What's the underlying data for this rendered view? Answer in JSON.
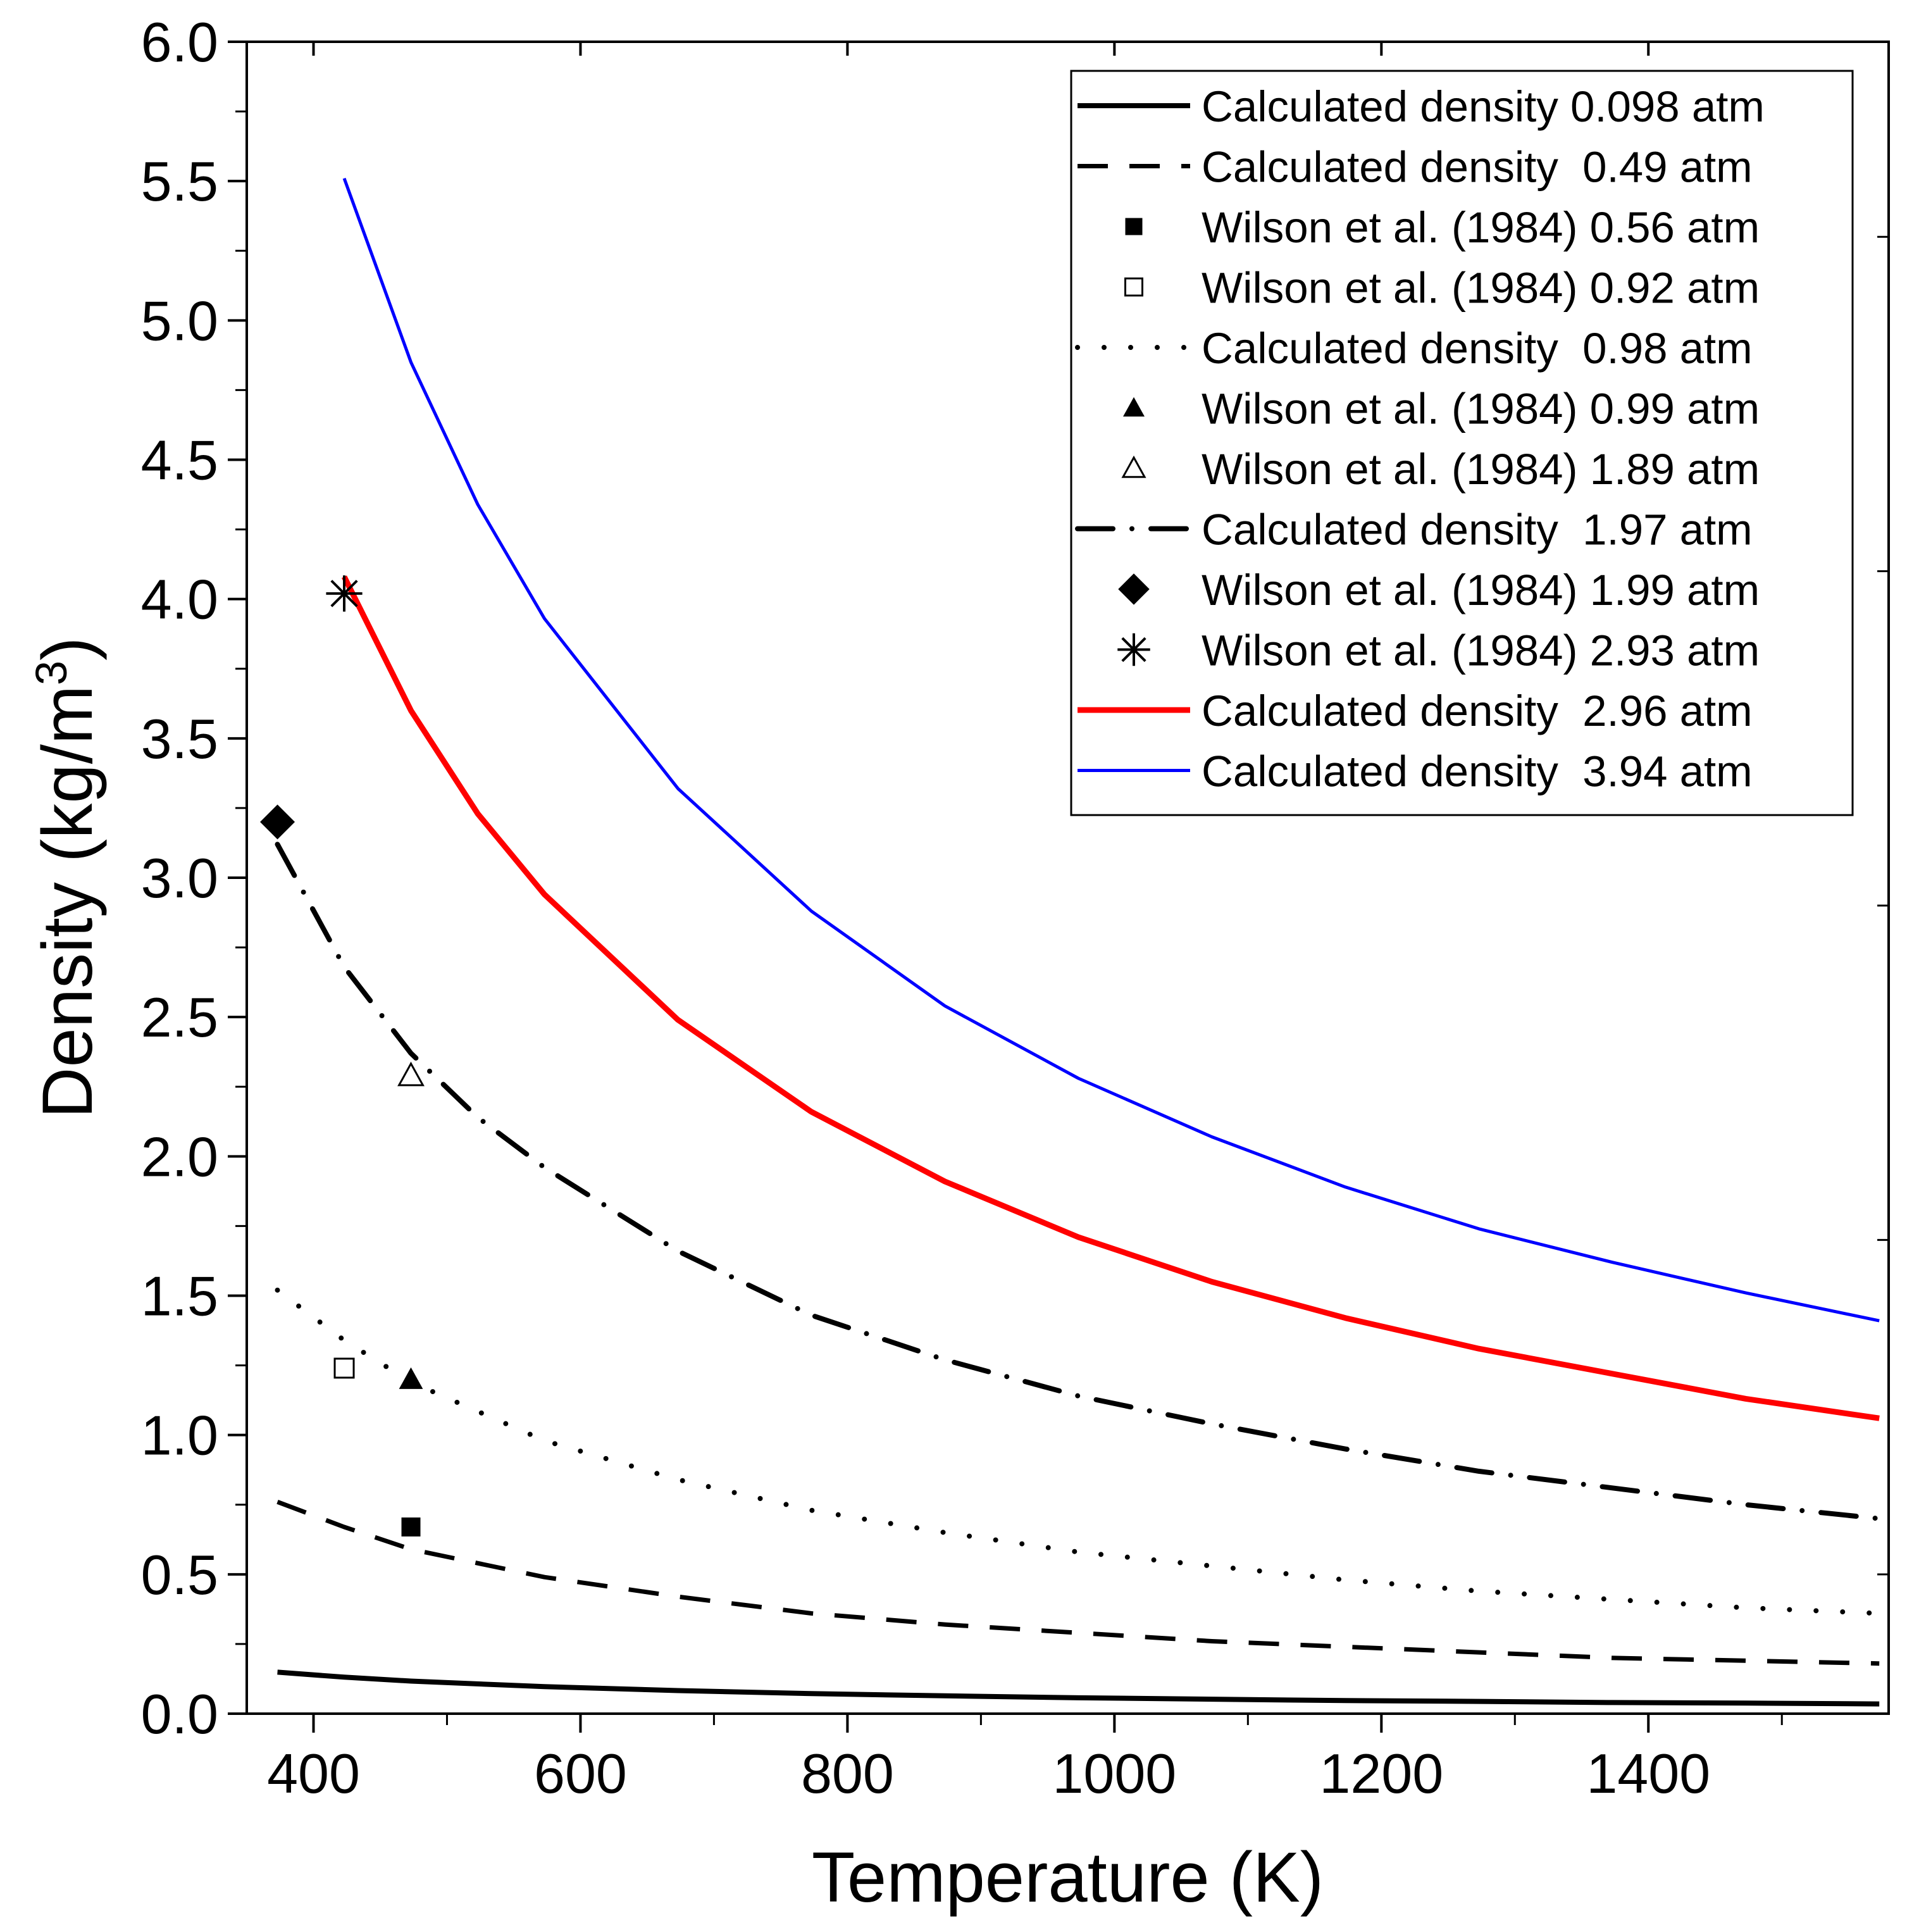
{
  "chart_data": {
    "type": "line",
    "xlabel": "Temperature (K)",
    "ylabel_main": "Density (kg/m",
    "ylabel_sup": "3",
    "ylabel_close": ")",
    "xlim": [
      350,
      1580
    ],
    "ylim": [
      0,
      6
    ],
    "xticks": [
      "400",
      "600",
      "800",
      "1000",
      "1200",
      "1400"
    ],
    "xtick_values": [
      400,
      600,
      800,
      1000,
      1200,
      1400
    ],
    "yticks": [
      "0.0",
      "0.5",
      "1.0",
      "1.5",
      "2.0",
      "2.5",
      "3.0",
      "3.5",
      "4.0",
      "4.5",
      "5.0",
      "5.5",
      "6.0"
    ],
    "ytick_values": [
      0,
      0.5,
      1.0,
      1.5,
      2.0,
      2.5,
      3.0,
      3.5,
      4.0,
      4.5,
      5.0,
      5.5,
      6.0
    ],
    "legend_position": "top-right",
    "legend": [
      {
        "label": "Calculated density 0.098 atm",
        "kind": "line",
        "style": "solid",
        "color": "#000000"
      },
      {
        "label": "Calculated density  0.49 atm",
        "kind": "line",
        "style": "dash",
        "color": "#000000"
      },
      {
        "label": "Wilson et al. (1984) 0.56 atm",
        "kind": "marker",
        "marker": "square-filled",
        "color": "#000000"
      },
      {
        "label": "Wilson et al. (1984) 0.92 atm",
        "kind": "marker",
        "marker": "square-open",
        "color": "#000000"
      },
      {
        "label": "Calculated density  0.98 atm",
        "kind": "line",
        "style": "dot",
        "color": "#000000"
      },
      {
        "label": "Wilson et al. (1984) 0.99 atm",
        "kind": "marker",
        "marker": "triangle-filled",
        "color": "#000000"
      },
      {
        "label": "Wilson et al. (1984) 1.89 atm",
        "kind": "marker",
        "marker": "triangle-open",
        "color": "#000000"
      },
      {
        "label": "Calculated density  1.97 atm",
        "kind": "line",
        "style": "dashdot",
        "color": "#000000"
      },
      {
        "label": "Wilson et al. (1984) 1.99 atm",
        "kind": "marker",
        "marker": "diamond-filled",
        "color": "#000000"
      },
      {
        "label": "Wilson et al. (1984) 2.93 atm",
        "kind": "marker",
        "marker": "asterisk",
        "color": "#000000"
      },
      {
        "label": "Calculated density  2.96 atm",
        "kind": "line",
        "style": "solid-thick",
        "color": "#ff0000"
      },
      {
        "label": "Calculated density  3.94 atm",
        "kind": "line",
        "style": "solid-thin",
        "color": "#0000ff"
      }
    ],
    "series": [
      {
        "name": "Calculated density 0.098 atm",
        "style": "solid",
        "color": "#000000",
        "x": [
          373,
          423,
          473,
          573,
          673,
          773,
          873,
          973,
          1073,
          1173,
          1273,
          1373,
          1473,
          1573
        ],
        "y": [
          0.149,
          0.131,
          0.117,
          0.097,
          0.083,
          0.072,
          0.064,
          0.057,
          0.052,
          0.047,
          0.044,
          0.04,
          0.038,
          0.035
        ]
      },
      {
        "name": "Calculated density  0.49 atm",
        "style": "dash",
        "color": "#000000",
        "x": [
          373,
          423,
          473,
          573,
          673,
          773,
          873,
          973,
          1073,
          1173,
          1273,
          1373,
          1473,
          1573
        ],
        "y": [
          0.76,
          0.67,
          0.59,
          0.49,
          0.42,
          0.36,
          0.32,
          0.29,
          0.26,
          0.24,
          0.22,
          0.2,
          0.19,
          0.18
        ]
      },
      {
        "name": "Calculated density  0.98 atm",
        "style": "dot",
        "color": "#000000",
        "x": [
          373,
          423,
          473,
          573,
          673,
          773,
          873,
          973,
          1073,
          1173,
          1273,
          1373,
          1473,
          1573
        ],
        "y": [
          1.52,
          1.34,
          1.19,
          0.98,
          0.84,
          0.73,
          0.65,
          0.58,
          0.53,
          0.48,
          0.44,
          0.41,
          0.38,
          0.36
        ]
      },
      {
        "name": "Calculated density  1.97 atm",
        "style": "dashdot",
        "color": "#000000",
        "x": [
          373,
          423,
          473,
          523,
          573,
          673,
          773,
          873,
          973,
          1073,
          1173,
          1273,
          1373,
          1473,
          1573
        ],
        "y": [
          3.12,
          2.68,
          2.37,
          2.14,
          1.96,
          1.66,
          1.43,
          1.27,
          1.14,
          1.04,
          0.95,
          0.87,
          0.81,
          0.75,
          0.7
        ]
      },
      {
        "name": "Calculated density  2.96 atm",
        "style": "solid-thick",
        "color": "#ff0000",
        "x": [
          423,
          473,
          523,
          573,
          673,
          773,
          873,
          973,
          1073,
          1173,
          1273,
          1373,
          1473,
          1573
        ],
        "y": [
          4.08,
          3.6,
          3.23,
          2.94,
          2.49,
          2.16,
          1.91,
          1.71,
          1.55,
          1.42,
          1.31,
          1.22,
          1.13,
          1.06
        ]
      },
      {
        "name": "Calculated density  3.94 atm",
        "style": "solid-thin",
        "color": "#0000ff",
        "x": [
          423,
          473,
          523,
          573,
          673,
          773,
          873,
          973,
          1073,
          1173,
          1273,
          1373,
          1473,
          1573
        ],
        "y": [
          5.51,
          4.85,
          4.34,
          3.93,
          3.32,
          2.88,
          2.54,
          2.28,
          2.07,
          1.89,
          1.74,
          1.62,
          1.51,
          1.41
        ]
      }
    ],
    "points": [
      {
        "name": "Wilson et al. (1984) 0.56 atm",
        "marker": "square-filled",
        "x": 473,
        "y": 0.67
      },
      {
        "name": "Wilson et al. (1984) 0.92 atm",
        "marker": "square-open",
        "x": 423,
        "y": 1.24
      },
      {
        "name": "Wilson et al. (1984) 0.99 atm",
        "marker": "triangle-filled",
        "x": 473,
        "y": 1.2
      },
      {
        "name": "Wilson et al. (1984) 1.89 atm",
        "marker": "triangle-open",
        "x": 473,
        "y": 2.29
      },
      {
        "name": "Wilson et al. (1984) 1.99 atm",
        "marker": "diamond-filled",
        "x": 373,
        "y": 3.2
      },
      {
        "name": "Wilson et al. (1984) 2.93 atm",
        "marker": "asterisk",
        "x": 423,
        "y": 4.02
      }
    ]
  }
}
